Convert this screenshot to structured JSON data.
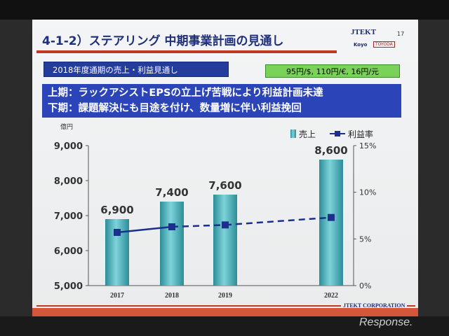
{
  "slide": {
    "title": "4-1-2）ステアリング 中期事業計画の見通し",
    "page_number": "17",
    "logo": {
      "brand": "JTEKT",
      "sub1": "Koyo",
      "sub2": "TOYODA"
    },
    "banner": "2018年度通期の売上・利益見通し",
    "rates": "95円/$, 110円/€, 16円/元",
    "messages": [
      "上期：ラックアシストEPSの立上げ苦戦により利益計画未達",
      "下期：課題解決にも目途を付け、数量増に伴い利益挽回"
    ],
    "footer": "JTEKT CORPORATION"
  },
  "watermark": "Response.",
  "chart_data": {
    "type": "bar",
    "categories": [
      "2017",
      "2018",
      "2019",
      "2022"
    ],
    "y_unit_label": "億円",
    "ylim": [
      5000,
      9000
    ],
    "yticks": [
      "9,000",
      "8,000",
      "7,000",
      "6,000",
      "5,000"
    ],
    "y2lim": [
      0,
      15
    ],
    "y2ticks": [
      "15%",
      "10%",
      "5%",
      "0%"
    ],
    "series": [
      {
        "name": "売上",
        "kind": "bar",
        "values": [
          6900,
          7400,
          7600,
          8600
        ],
        "labels": [
          "6,900",
          "7,400",
          "7,600",
          "8,600"
        ],
        "color": "#3aa9b4"
      },
      {
        "name": "利益率",
        "kind": "line",
        "axis": "right",
        "values": [
          5.7,
          6.3,
          6.5,
          7.3
        ],
        "color": "#1c2f8c",
        "dashed_from_index": 1
      }
    ],
    "legend_position": "top-right",
    "grid": false
  }
}
